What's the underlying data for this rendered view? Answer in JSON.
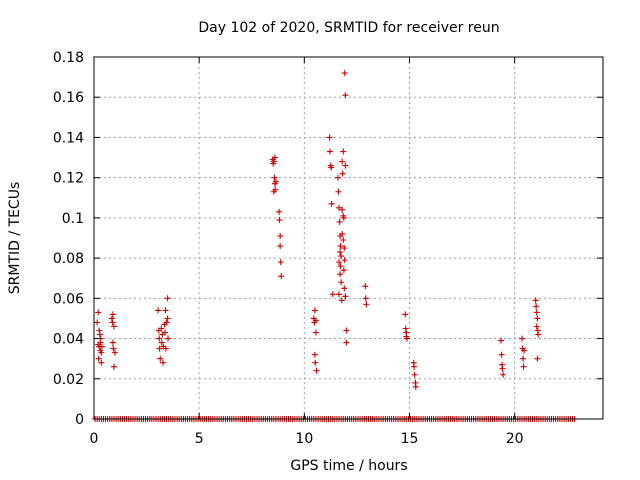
{
  "chart_data": {
    "type": "scatter",
    "title": "Day 102 of 2020, SRMTID for receiver reun",
    "xlabel": "GPS time / hours",
    "ylabel": "SRMTID / TECUs",
    "xlim": [
      0,
      24.2
    ],
    "ylim": [
      0,
      0.18
    ],
    "xticks": [
      0,
      5,
      10,
      15,
      20
    ],
    "xtick_labels": [
      "0",
      "5",
      "10",
      "15",
      "20"
    ],
    "yticks": [
      0,
      0.02,
      0.04,
      0.06,
      0.08,
      0.1,
      0.12,
      0.14,
      0.16,
      0.18
    ],
    "ytick_labels": [
      "0",
      "0.02",
      "0.04",
      "0.06",
      "0.08",
      "0.1",
      "0.12",
      "0.14",
      "0.16",
      "0.18"
    ],
    "grid": true,
    "marker": "plus",
    "color": "#cc0000",
    "zero_band": {
      "x_start": 0.05,
      "x_end": 22.9,
      "step": 0.1,
      "y": 0
    },
    "points": [
      [
        0.15,
        0.048
      ],
      [
        0.2,
        0.053
      ],
      [
        0.2,
        0.037
      ],
      [
        0.22,
        0.03
      ],
      [
        0.25,
        0.044
      ],
      [
        0.25,
        0.036
      ],
      [
        0.28,
        0.042
      ],
      [
        0.3,
        0.038
      ],
      [
        0.3,
        0.034
      ],
      [
        0.32,
        0.04
      ],
      [
        0.35,
        0.033
      ],
      [
        0.35,
        0.028
      ],
      [
        0.38,
        0.036
      ],
      [
        0.85,
        0.05
      ],
      [
        0.88,
        0.048
      ],
      [
        0.9,
        0.052
      ],
      [
        0.9,
        0.038
      ],
      [
        0.92,
        0.035
      ],
      [
        0.95,
        0.046
      ],
      [
        0.95,
        0.026
      ],
      [
        1.0,
        0.033
      ],
      [
        3.05,
        0.054
      ],
      [
        3.08,
        0.044
      ],
      [
        3.1,
        0.04
      ],
      [
        3.12,
        0.035
      ],
      [
        3.15,
        0.03
      ],
      [
        3.2,
        0.045
      ],
      [
        3.22,
        0.038
      ],
      [
        3.25,
        0.042
      ],
      [
        3.28,
        0.028
      ],
      [
        3.3,
        0.036
      ],
      [
        3.35,
        0.047
      ],
      [
        3.38,
        0.043
      ],
      [
        3.4,
        0.054
      ],
      [
        3.42,
        0.035
      ],
      [
        3.45,
        0.048
      ],
      [
        3.5,
        0.06
      ],
      [
        3.5,
        0.05
      ],
      [
        3.52,
        0.04
      ],
      [
        8.5,
        0.129
      ],
      [
        8.52,
        0.127
      ],
      [
        8.55,
        0.128
      ],
      [
        8.58,
        0.12
      ],
      [
        8.6,
        0.13
      ],
      [
        8.6,
        0.117
      ],
      [
        8.62,
        0.114
      ],
      [
        8.55,
        0.113
      ],
      [
        8.65,
        0.118
      ],
      [
        8.8,
        0.103
      ],
      [
        8.82,
        0.099
      ],
      [
        8.85,
        0.091
      ],
      [
        8.85,
        0.086
      ],
      [
        8.88,
        0.078
      ],
      [
        8.9,
        0.071
      ],
      [
        10.45,
        0.05
      ],
      [
        10.48,
        0.048
      ],
      [
        10.5,
        0.054
      ],
      [
        10.5,
        0.032
      ],
      [
        10.52,
        0.028
      ],
      [
        10.55,
        0.049
      ],
      [
        10.55,
        0.043
      ],
      [
        10.58,
        0.024
      ],
      [
        11.2,
        0.14
      ],
      [
        11.22,
        0.133
      ],
      [
        11.25,
        0.126
      ],
      [
        11.28,
        0.125
      ],
      [
        11.3,
        0.107
      ],
      [
        11.35,
        0.062
      ],
      [
        11.6,
        0.12
      ],
      [
        11.62,
        0.113
      ],
      [
        11.65,
        0.105
      ],
      [
        11.68,
        0.098
      ],
      [
        11.7,
        0.091
      ],
      [
        11.72,
        0.086
      ],
      [
        11.75,
        0.081
      ],
      [
        11.72,
        0.076
      ],
      [
        11.7,
        0.072
      ],
      [
        11.75,
        0.068
      ],
      [
        11.65,
        0.062
      ],
      [
        11.78,
        0.059
      ],
      [
        11.8,
        0.128
      ],
      [
        11.82,
        0.122
      ],
      [
        11.85,
        0.133
      ],
      [
        11.8,
        0.104
      ],
      [
        11.85,
        0.101
      ],
      [
        11.88,
        0.1
      ],
      [
        11.9,
        0.085
      ],
      [
        11.92,
        0.079
      ],
      [
        11.88,
        0.074
      ],
      [
        11.9,
        0.065
      ],
      [
        11.95,
        0.126
      ],
      [
        11.95,
        0.061
      ],
      [
        11.92,
        0.172
      ],
      [
        11.95,
        0.161
      ],
      [
        12.0,
        0.044
      ],
      [
        12.0,
        0.038
      ],
      [
        11.8,
        0.092
      ],
      [
        11.85,
        0.089
      ],
      [
        11.7,
        0.083
      ],
      [
        11.65,
        0.078
      ],
      [
        12.9,
        0.066
      ],
      [
        12.92,
        0.06
      ],
      [
        12.95,
        0.057
      ],
      [
        14.8,
        0.052
      ],
      [
        14.82,
        0.045
      ],
      [
        14.85,
        0.043
      ],
      [
        14.85,
        0.041
      ],
      [
        14.88,
        0.04
      ],
      [
        15.2,
        0.028
      ],
      [
        15.22,
        0.026
      ],
      [
        15.25,
        0.022
      ],
      [
        15.28,
        0.018
      ],
      [
        15.3,
        0.016
      ],
      [
        19.35,
        0.039
      ],
      [
        19.38,
        0.032
      ],
      [
        19.4,
        0.027
      ],
      [
        19.42,
        0.025
      ],
      [
        19.45,
        0.022
      ],
      [
        20.35,
        0.04
      ],
      [
        20.38,
        0.035
      ],
      [
        20.4,
        0.03
      ],
      [
        20.42,
        0.026
      ],
      [
        20.45,
        0.034
      ],
      [
        21.0,
        0.059
      ],
      [
        21.02,
        0.056
      ],
      [
        21.05,
        0.053
      ],
      [
        21.08,
        0.05
      ],
      [
        21.05,
        0.046
      ],
      [
        21.1,
        0.044
      ],
      [
        21.12,
        0.042
      ],
      [
        21.08,
        0.03
      ]
    ]
  }
}
